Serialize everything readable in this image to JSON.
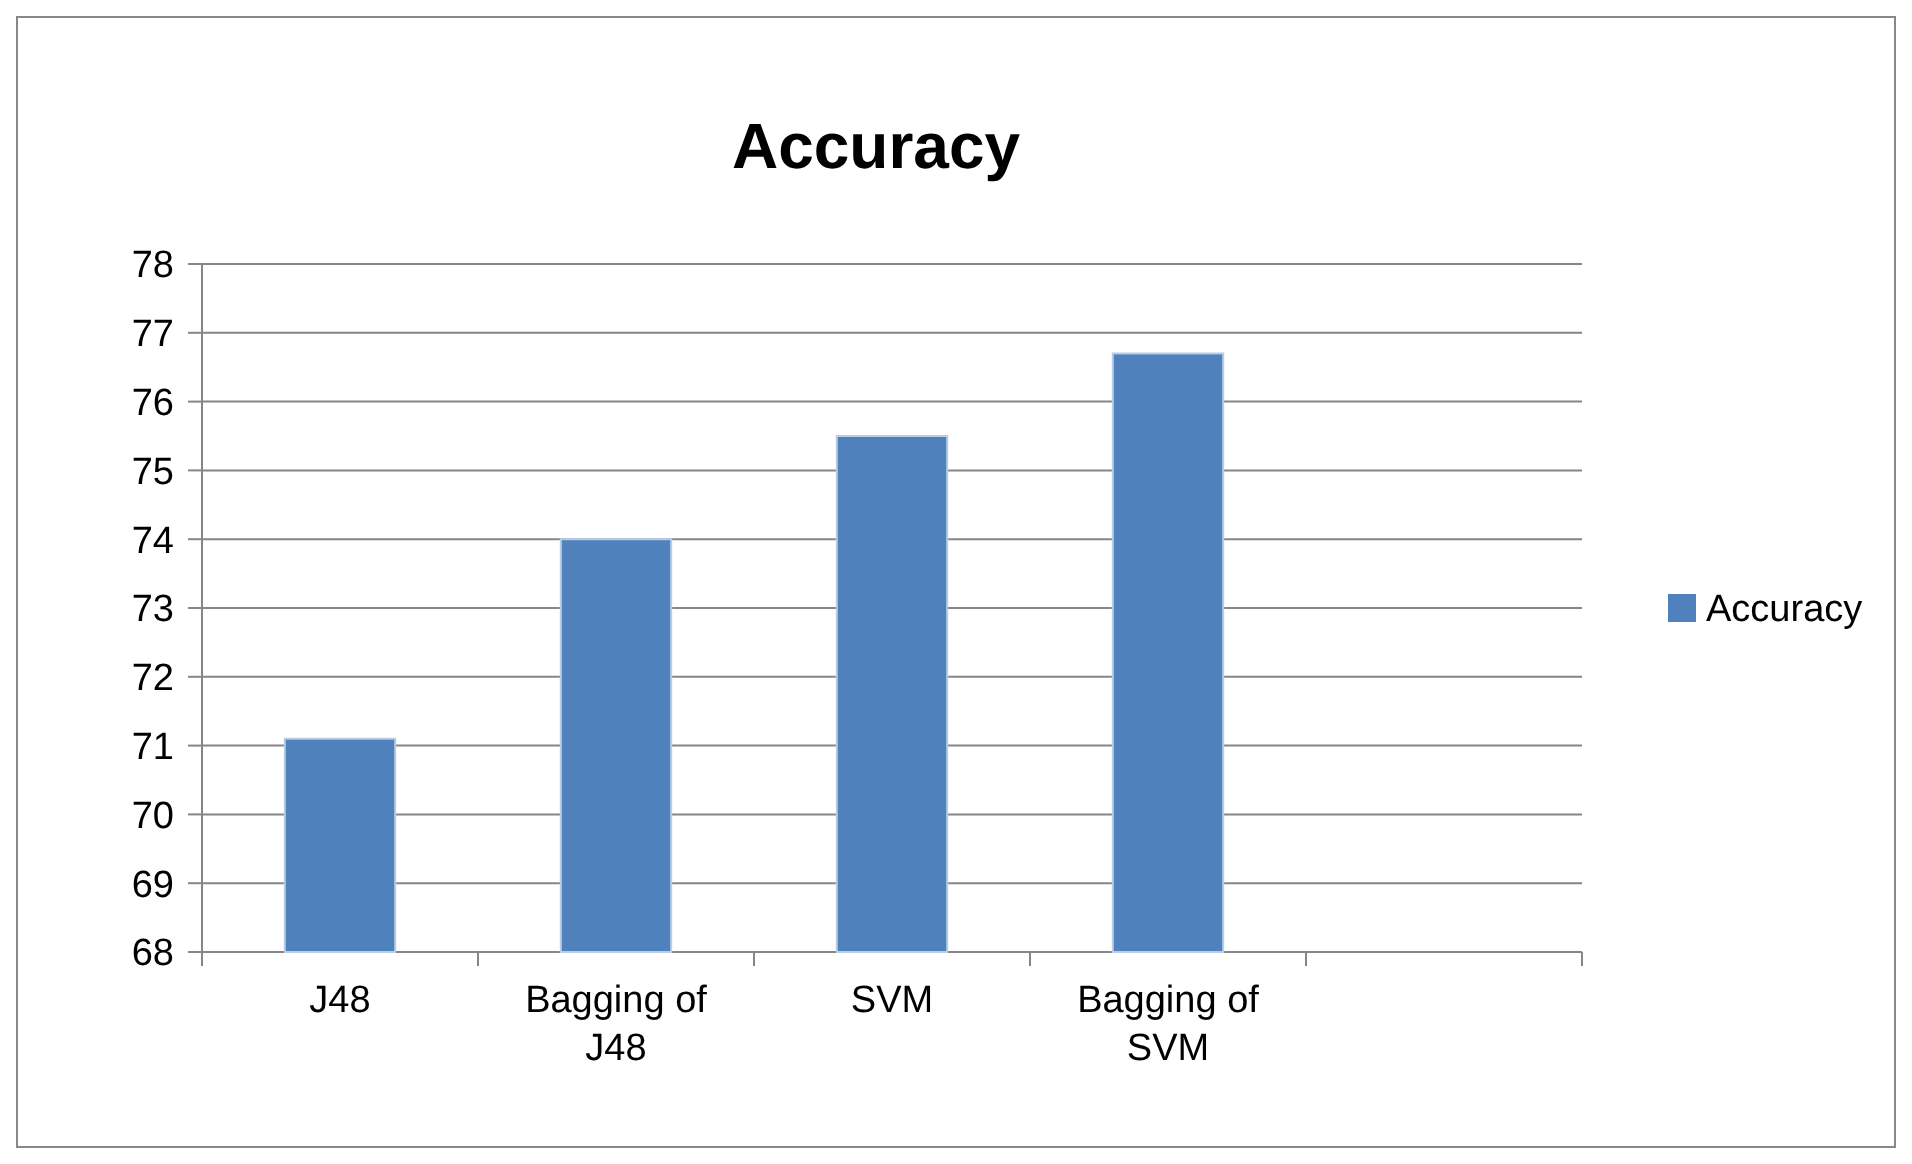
{
  "chart_data": {
    "type": "bar",
    "title": "Accuracy",
    "categories": [
      "J48",
      "Bagging of J48",
      "SVM",
      "Bagging of SVM",
      null
    ],
    "series": [
      {
        "name": "Accuracy",
        "color": "#4f81bd",
        "values": [
          71.1,
          74.0,
          75.5,
          76.7,
          null
        ]
      }
    ],
    "ylim": [
      68,
      78
    ],
    "yticks": [
      68,
      69,
      70,
      71,
      72,
      73,
      74,
      75,
      76,
      77,
      78
    ],
    "grid": "y",
    "legend": "right"
  }
}
